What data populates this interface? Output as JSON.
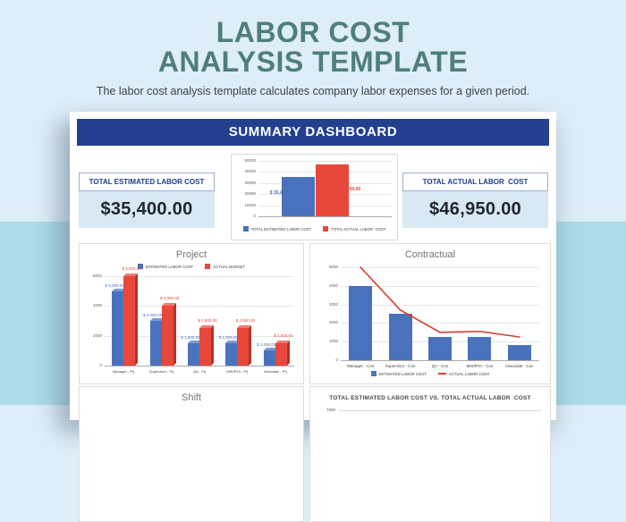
{
  "page": {
    "title_line1": "LABOR COST",
    "title_line2": "ANALYSIS TEMPLATE",
    "subtitle": "The labor cost analysis template calculates company labor expenses for a given period.",
    "banner": "SUMMARY DASHBOARD"
  },
  "stats": {
    "estimated": {
      "label": "TOTAL ESTIMATED LABOR COST",
      "value": "$35,400.00"
    },
    "actual": {
      "label": "TOTAL ACTUAL LABOR  COST",
      "value": "$46,950.00"
    }
  },
  "colors": {
    "title_teal": "#4E7F79",
    "banner_blue": "#23408E",
    "bar_blue": "#4A72BC",
    "bar_red": "#E8473B",
    "line_red": "#D93A2B",
    "stat_value_bg": "#D8E9F3",
    "background_top": "#DEEEF8",
    "background_bottom": "#ABDBE7"
  },
  "chart_data": [
    {
      "id": "summary",
      "type": "bar",
      "title": "",
      "categories": [
        "TOTAL ESTIMATED LABOR COST",
        "TOTAL ACTUAL LABOR  COST"
      ],
      "values": [
        35400,
        46950
      ],
      "data_labels": [
        "$ 35,400.00",
        "$ 46,950.00"
      ],
      "colors": [
        "#4A72BC",
        "#E8473B"
      ],
      "ylim": [
        0,
        50000
      ],
      "yticks": [
        0,
        10000,
        20000,
        30000,
        40000,
        50000
      ],
      "legend_position": "bottom",
      "grid": true
    },
    {
      "id": "project",
      "type": "bar",
      "style": "3d",
      "title": "Project",
      "categories": [
        "Manager - Prj",
        "Supervisor - Prj",
        "QA - Prj",
        "MIS/RTA - Prj",
        "Associate - Prj"
      ],
      "series": [
        {
          "name": "ESTIMATED LABOR COST",
          "color": "#4A72BC",
          "values": [
            5000,
            3000,
            1500,
            1500,
            1000
          ],
          "data_labels": [
            "$ 5,000.00",
            "$ 3,000.00",
            "$ 1,500.00",
            "$ 1,500.00",
            "$ 1,000.00"
          ]
        },
        {
          "name": "ACTUAL BUDGET",
          "color": "#E8473B",
          "values": [
            6000,
            4000,
            2500,
            2500,
            1500
          ],
          "data_labels": [
            "$ 6,000.00",
            "$ 4,000.00",
            "$ 2,500.00",
            "$ 2,500.00",
            "$ 1,500.00"
          ]
        }
      ],
      "ylim": [
        0,
        6000
      ],
      "yticks": [
        0,
        2000,
        4000,
        6000
      ],
      "legend_position": "top",
      "grid": true
    },
    {
      "id": "contractual",
      "type": "bar+line",
      "title": "Contractual",
      "categories": [
        "Manager - Con",
        "Supervisor - Con",
        "QA - Con",
        "MIS/RTA - Con",
        "Associate - Con"
      ],
      "series": [
        {
          "name": "ESTIMATED LABOR COST",
          "type": "bar",
          "color": "#4A72BC",
          "values": [
            4000,
            2500,
            1250,
            1250,
            800
          ]
        },
        {
          "name": "ACTUAL LABOR COST",
          "type": "line",
          "color": "#D93A2B",
          "values": [
            5000,
            2700,
            1500,
            1550,
            1250
          ]
        }
      ],
      "ylim": [
        0,
        5000
      ],
      "yticks": [
        0,
        1000,
        2000,
        3000,
        4000,
        5000
      ],
      "legend_position": "bottom",
      "grid": true
    },
    {
      "id": "shift",
      "type": "bar",
      "title": "Shift",
      "note": "chart body cut off at bottom of screenshot"
    },
    {
      "id": "vs",
      "type": "bar",
      "title": "TOTAL ESTIMATED LABOR COST VS. TOTAL ACTUAL LABOR  COST",
      "yticks_partial": [
        7000
      ],
      "note": "chart body cut off at bottom of screenshot"
    }
  ]
}
